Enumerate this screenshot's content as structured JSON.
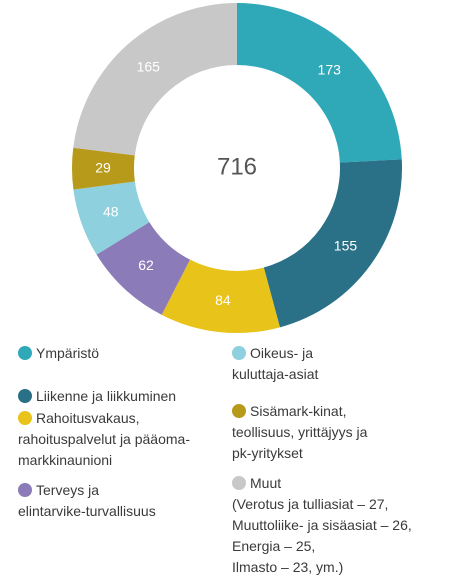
{
  "chart_data": {
    "type": "donut",
    "center_label": 716,
    "categories": [
      "Ympäristö",
      "Liikenne ja liikkuminen",
      "Rahoitusvakaus,\nrahoituspalvelut ja pääoma-\nmarkkinaunioni",
      "Terveys ja\nelintarvike-turvallisuus",
      "Oikeus- ja\nkuluttaja-asiat",
      "Sisämark-kinat,\nteollisuus, yrittäjyys ja\npk-yritykset",
      "Muut"
    ],
    "values": [
      173,
      155,
      84,
      62,
      48,
      29,
      165
    ],
    "colors": [
      "#2fa9b8",
      "#2a7087",
      "#e8c31a",
      "#8b7bb8",
      "#8ed0de",
      "#b89a1a",
      "#c8c8c8"
    ],
    "legend_note": "(Verotus ja tulliasiat – 27,\nMuuttoliike- ja sisäasiat – 26,\nEnergia – 25,\nIlmasto – 23, ym.)"
  }
}
